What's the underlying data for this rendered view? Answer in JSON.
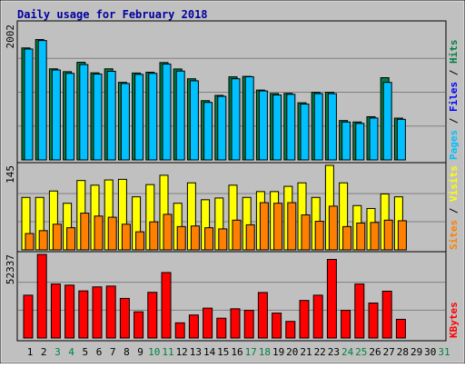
{
  "chart_data": {
    "title": "Daily usage for February 2018",
    "x_days": [
      "1",
      "2",
      "3",
      "4",
      "5",
      "6",
      "7",
      "8",
      "9",
      "10",
      "11",
      "12",
      "13",
      "14",
      "15",
      "16",
      "17",
      "18",
      "19",
      "20",
      "21",
      "22",
      "23",
      "24",
      "25",
      "26",
      "27",
      "28",
      "29",
      "30",
      "31"
    ],
    "weekend_days": [
      3,
      4,
      10,
      11,
      17,
      18,
      24,
      25,
      31
    ],
    "panels": [
      {
        "type": "bar",
        "scale_label": "2002",
        "max": 2002,
        "series": [
          {
            "name": "Hits",
            "color": "#008040",
            "values": [
              1656,
              1780,
              1347,
              1305,
              1444,
              1288,
              1347,
              1147,
              1285,
              1297,
              1440,
              1345,
              1200,
              876,
              954,
              1229,
              1235,
              1033,
              982,
              984,
              845,
              1000,
              1000,
              582,
              561,
              639,
              1216,
              618,
              0,
              0,
              0
            ]
          },
          {
            "name": "Files",
            "color": "#0000ff",
            "values": [
              0,
              0,
              0,
              0,
              0,
              0,
              0,
              0,
              0,
              0,
              0,
              0,
              0,
              0,
              0,
              0,
              0,
              0,
              0,
              0,
              0,
              0,
              0,
              0,
              0,
              0,
              0,
              0,
              0,
              0,
              0
            ]
          },
          {
            "name": "Pages",
            "color": "#00c0ff",
            "values": [
              1640,
              1765,
              1330,
              1280,
              1410,
              1270,
              1310,
              1130,
              1265,
              1280,
              1417,
              1314,
              1170,
              850,
              940,
              1200,
              1230,
              1020,
              960,
              970,
              826,
              980,
              980,
              560,
              540,
              620,
              1146,
              600,
              0,
              0,
              0
            ]
          }
        ]
      },
      {
        "type": "bar",
        "scale_label": "145",
        "max": 145,
        "series": [
          {
            "name": "Visits",
            "color": "#ffff00",
            "values": [
              90,
              90,
              101,
              80,
              119,
              111,
              120,
              121,
              91,
              112,
              128,
              80,
              115,
              86,
              89,
              111,
              90,
              100,
              100,
              109,
              115,
              90,
              145,
              115,
              76,
              71,
              96,
              91,
              0,
              0,
              0
            ]
          },
          {
            "name": "Sites",
            "color": "#ff8000",
            "values": [
              28,
              33,
              44,
              38,
              63,
              58,
              56,
              44,
              31,
              48,
              61,
              40,
              41,
              38,
              36,
              51,
              43,
              81,
              80,
              81,
              60,
              49,
              75,
              40,
              46,
              47,
              51,
              50,
              0,
              0,
              0
            ]
          }
        ]
      },
      {
        "type": "bar",
        "scale_label": "52337",
        "max": 52337,
        "series": [
          {
            "name": "KBytes",
            "color": "#ff0000",
            "values": [
              26800,
              52337,
              33800,
              33100,
              29500,
              32000,
              32500,
              24800,
              16400,
              28600,
              41000,
              9500,
              14400,
              18700,
              12400,
              18300,
              17300,
              28500,
              15600,
              10400,
              23500,
              26800,
              49200,
              17300,
              33800,
              21900,
              29300,
              11700,
              0,
              0,
              0
            ]
          }
        ]
      }
    ]
  }
}
